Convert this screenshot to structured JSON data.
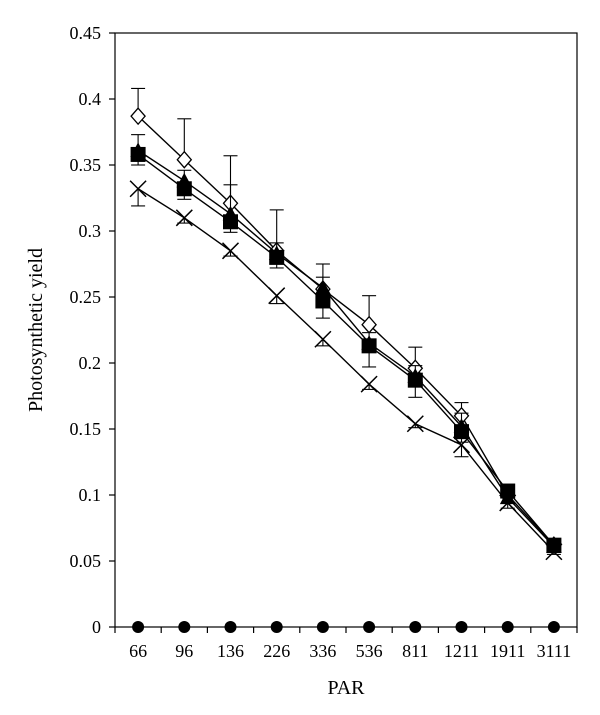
{
  "chart_data": {
    "type": "line",
    "xlabel": "PAR",
    "ylabel": "Photosynthetic yield",
    "categories": [
      "66",
      "96",
      "136",
      "226",
      "336",
      "536",
      "811",
      "1211",
      "1911",
      "3111"
    ],
    "ylim": [
      0,
      0.45
    ],
    "yticks": [
      "0",
      "0.05",
      "0.1",
      "0.15",
      "0.2",
      "0.25",
      "0.3",
      "0.35",
      "0.4",
      "0.45"
    ],
    "grid": false,
    "legend": "none",
    "series": [
      {
        "marker": "diamond-open",
        "values": [
          0.387,
          0.354,
          0.321,
          0.285,
          0.256,
          0.229,
          0.196,
          0.16,
          0.1,
          0.062
        ],
        "err_up": [
          0.021,
          0.031,
          0.036,
          0.031,
          0.019,
          0.022,
          0.016,
          0.01,
          0.004,
          0.003
        ]
      },
      {
        "marker": "triangle-filled",
        "values": [
          0.361,
          0.338,
          0.313,
          0.283,
          0.257,
          0.215,
          0.19,
          0.152,
          0.098,
          0.061
        ],
        "err_up": [
          0.012,
          0.008,
          0.022,
          0.008,
          0.008,
          0.008,
          0.008,
          0.01,
          0.004,
          0.003
        ]
      },
      {
        "marker": "square-filled",
        "values": [
          0.358,
          0.332,
          0.307,
          0.28,
          0.247,
          0.213,
          0.187,
          0.148,
          0.103,
          0.062
        ],
        "err_down": [
          0.008,
          0.008,
          0.008,
          0.008,
          0.013,
          0.016,
          0.013,
          0.008,
          0.004,
          0.003
        ]
      },
      {
        "marker": "x",
        "values": [
          0.332,
          0.31,
          0.285,
          0.251,
          0.218,
          0.184,
          0.154,
          0.138,
          0.094,
          0.057
        ],
        "err_down": [
          0.013,
          0.004,
          0.004,
          0.006,
          0.005,
          0.004,
          0.003,
          0.009,
          0.004,
          0.002
        ]
      },
      {
        "marker": "circle-filled",
        "values": [
          0,
          0,
          0,
          0,
          0,
          0,
          0,
          0,
          0,
          0
        ]
      }
    ],
    "colors": {
      "ink": "#000000",
      "background": "#ffffff"
    }
  }
}
